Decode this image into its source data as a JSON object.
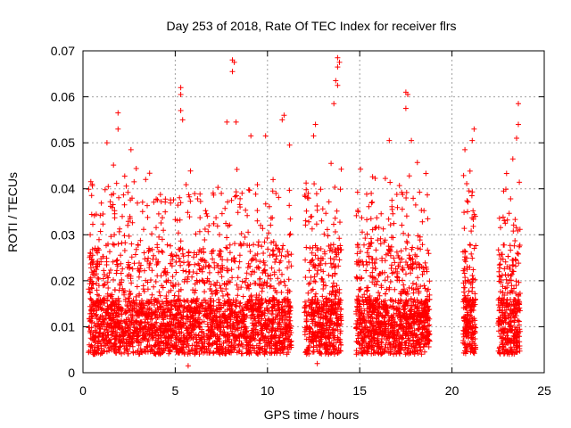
{
  "chart_data": {
    "type": "scatter",
    "title": "Day 253 of 2018, Rate Of TEC Index for receiver flrs",
    "xlabel": "GPS time / hours",
    "ylabel": "ROTI / TECUs",
    "xlim": [
      0,
      25
    ],
    "ylim": [
      0,
      0.07
    ],
    "x_ticks": [
      0,
      5,
      10,
      15,
      20,
      25
    ],
    "x_tick_labels": [
      "0",
      "5",
      "10",
      "15",
      "20",
      "25"
    ],
    "y_ticks": [
      0,
      0.01,
      0.02,
      0.03,
      0.04,
      0.05,
      0.06,
      0.07
    ],
    "y_tick_labels": [
      "0",
      "0.01",
      "0.02",
      "0.03",
      "0.04",
      "0.05",
      "0.06",
      "0.07"
    ],
    "grid": true,
    "marker": "plus",
    "marker_color": "#ff0000",
    "data_segments": [
      {
        "x_start": 0.3,
        "x_end": 11.3,
        "density": 2600
      },
      {
        "x_start": 12.0,
        "x_end": 14.0,
        "density": 520
      },
      {
        "x_start": 14.8,
        "x_end": 18.8,
        "density": 1050
      },
      {
        "x_start": 20.6,
        "x_end": 21.3,
        "density": 230
      },
      {
        "x_start": 22.5,
        "x_end": 23.7,
        "density": 330
      }
    ],
    "notable_points": [
      {
        "x": 8.1,
        "y": 0.068
      },
      {
        "x": 8.2,
        "y": 0.0675
      },
      {
        "x": 8.1,
        "y": 0.0655
      },
      {
        "x": 13.8,
        "y": 0.0685
      },
      {
        "x": 13.9,
        "y": 0.0675
      },
      {
        "x": 13.8,
        "y": 0.0665
      },
      {
        "x": 13.7,
        "y": 0.0635
      },
      {
        "x": 13.8,
        "y": 0.0625
      },
      {
        "x": 17.5,
        "y": 0.061
      },
      {
        "x": 17.6,
        "y": 0.0605
      },
      {
        "x": 17.5,
        "y": 0.0575
      },
      {
        "x": 5.3,
        "y": 0.062
      },
      {
        "x": 5.3,
        "y": 0.0605
      },
      {
        "x": 5.3,
        "y": 0.057
      },
      {
        "x": 5.4,
        "y": 0.055
      },
      {
        "x": 23.6,
        "y": 0.0585
      },
      {
        "x": 23.6,
        "y": 0.054
      },
      {
        "x": 23.5,
        "y": 0.051
      },
      {
        "x": 1.9,
        "y": 0.0565
      },
      {
        "x": 1.9,
        "y": 0.053
      },
      {
        "x": 10.9,
        "y": 0.056
      },
      {
        "x": 10.8,
        "y": 0.055
      },
      {
        "x": 7.8,
        "y": 0.0545
      },
      {
        "x": 8.3,
        "y": 0.0545
      },
      {
        "x": 12.6,
        "y": 0.054
      },
      {
        "x": 12.5,
        "y": 0.0515
      },
      {
        "x": 21.2,
        "y": 0.053
      },
      {
        "x": 21.1,
        "y": 0.0505
      },
      {
        "x": 1.3,
        "y": 0.05
      },
      {
        "x": 13.6,
        "y": 0.0585
      },
      {
        "x": 9.1,
        "y": 0.0515
      },
      {
        "x": 9.9,
        "y": 0.0515
      },
      {
        "x": 11.2,
        "y": 0.0495
      },
      {
        "x": 16.6,
        "y": 0.0505
      },
      {
        "x": 17.8,
        "y": 0.0505
      },
      {
        "x": 20.7,
        "y": 0.0485
      },
      {
        "x": 22.8,
        "y": 0.0395
      },
      {
        "x": 23.3,
        "y": 0.0465
      },
      {
        "x": 2.6,
        "y": 0.0485
      },
      {
        "x": 0.5,
        "y": 0.041
      },
      {
        "x": 12.7,
        "y": 0.002
      },
      {
        "x": 5.7,
        "y": 0.0015
      }
    ]
  }
}
